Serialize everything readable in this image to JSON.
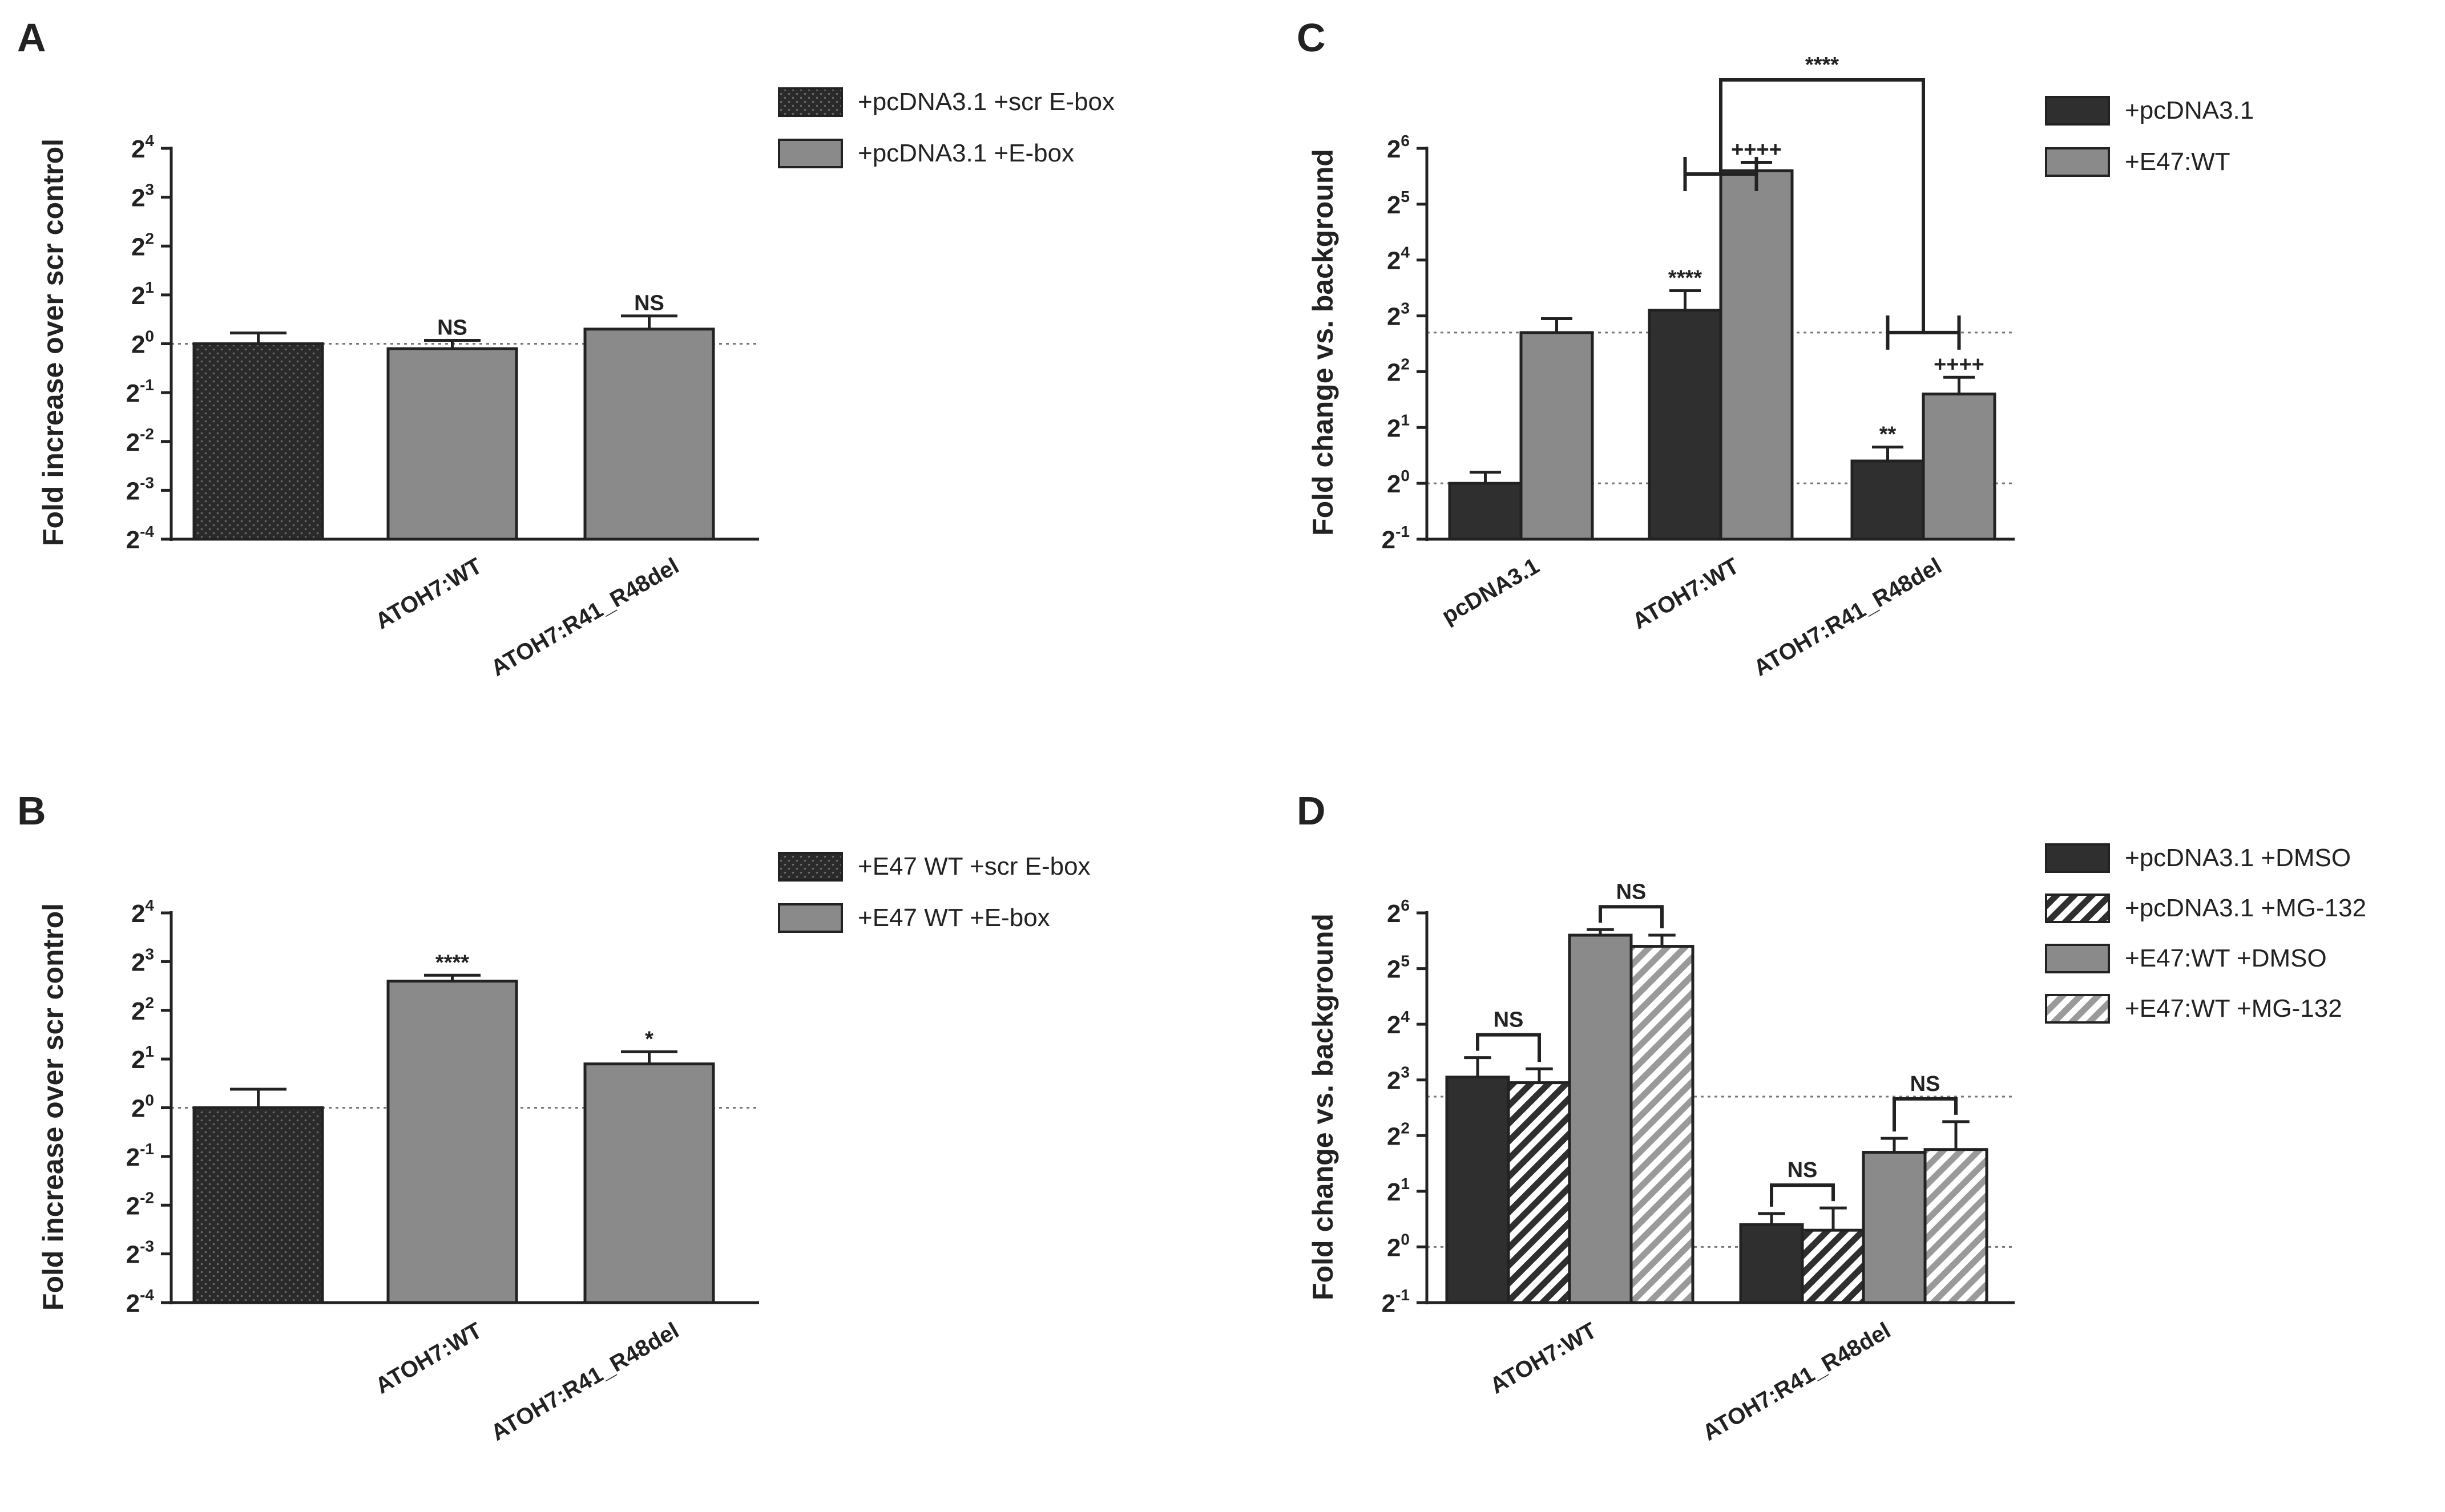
{
  "colors": {
    "dark": "#2f2f2f",
    "gray": "#8a8a8a",
    "edge": "#222222",
    "text": "#222222"
  },
  "chart_data": [
    {
      "id": "A",
      "type": "bar",
      "panel_label": "A",
      "title": "",
      "ylabel": "Fold increase over scr control",
      "yscale": "log2",
      "ylim_exp": [
        -4,
        4
      ],
      "ytick_exp": [
        -4,
        -3,
        -2,
        -1,
        0,
        1,
        2,
        3,
        4
      ],
      "ref_lines_exp": [
        0
      ],
      "categories": [
        "ATOH7:WT",
        "ATOH7:R41_R48del"
      ],
      "bars": [
        {
          "cat": 0,
          "series": 0,
          "exp": 0,
          "err_exp": 0.22,
          "label": ""
        },
        {
          "cat": 0,
          "series": 1,
          "exp": -0.1,
          "err_exp": 0.17,
          "label": "NS"
        },
        {
          "cat": 1,
          "series": 1,
          "exp": 0.3,
          "err_exp": 0.27,
          "label": "NS"
        }
      ],
      "series": [
        {
          "name": "+pcDNA3.1 +scr E-box",
          "pattern": "dots"
        },
        {
          "name": "+pcDNA3.1 +E-box",
          "pattern": "gray"
        }
      ],
      "legend": "top-right",
      "brackets": []
    },
    {
      "id": "B",
      "type": "bar",
      "panel_label": "B",
      "title": "",
      "ylabel": "Fold increase over scr control",
      "yscale": "log2",
      "ylim_exp": [
        -4,
        4
      ],
      "ytick_exp": [
        -4,
        -3,
        -2,
        -1,
        0,
        1,
        2,
        3,
        4
      ],
      "ref_lines_exp": [
        0
      ],
      "categories": [
        "ATOH7:WT",
        "ATOH7:R41_R48del"
      ],
      "bars": [
        {
          "cat": 0,
          "series": 0,
          "exp": 0,
          "err_exp": 0.38,
          "label": ""
        },
        {
          "cat": 0,
          "series": 1,
          "exp": 2.6,
          "err_exp": 0.12,
          "label": "****"
        },
        {
          "cat": 1,
          "series": 1,
          "exp": 0.9,
          "err_exp": 0.25,
          "label": "*"
        }
      ],
      "series": [
        {
          "name": "+E47 WT +scr E-box",
          "pattern": "dots"
        },
        {
          "name": "+E47 WT +E-box",
          "pattern": "gray"
        }
      ],
      "legend": "top-right",
      "brackets": []
    },
    {
      "id": "C",
      "type": "bar",
      "panel_label": "C",
      "title": "",
      "ylabel": "Fold change vs. background",
      "yscale": "log2",
      "ylim_exp": [
        -1,
        6
      ],
      "ytick_exp": [
        -1,
        0,
        1,
        2,
        3,
        4,
        5,
        6
      ],
      "ref_lines_exp": [
        0,
        2.7
      ],
      "categories": [
        "pcDNA3.1",
        "ATOH7:WT",
        "ATOH7:R41_R48del"
      ],
      "bars": [
        {
          "cat": 0,
          "series": 0,
          "exp": 0,
          "err_exp": 0.2,
          "label": ""
        },
        {
          "cat": 0,
          "series": 1,
          "exp": 2.7,
          "err_exp": 0.25,
          "label": ""
        },
        {
          "cat": 1,
          "series": 0,
          "exp": 3.1,
          "err_exp": 0.35,
          "label": "****"
        },
        {
          "cat": 1,
          "series": 1,
          "exp": 5.6,
          "err_exp": 0.15,
          "label": "++++"
        },
        {
          "cat": 2,
          "series": 0,
          "exp": 0.4,
          "err_exp": 0.25,
          "label": "**"
        },
        {
          "cat": 2,
          "series": 1,
          "exp": 1.6,
          "err_exp": 0.3,
          "label": "++++"
        }
      ],
      "series": [
        {
          "name": "+pcDNA3.1",
          "pattern": "dark"
        },
        {
          "name": "+E47:WT",
          "pattern": "gray"
        }
      ],
      "legend": "top-right",
      "brackets": [
        {
          "kind": "compare",
          "cat_a": 1,
          "cat_b": 2,
          "label": "****"
        }
      ]
    },
    {
      "id": "D",
      "type": "bar",
      "panel_label": "D",
      "title": "",
      "ylabel": "Fold change vs. background",
      "yscale": "log2",
      "ylim_exp": [
        -1,
        6
      ],
      "ytick_exp": [
        -1,
        0,
        1,
        2,
        3,
        4,
        5,
        6
      ],
      "ref_lines_exp": [
        0,
        2.7
      ],
      "categories": [
        "ATOH7:WT",
        "ATOH7:R41_R48del"
      ],
      "bars": [
        {
          "cat": 0,
          "series": 0,
          "exp": 3.05,
          "err_exp": 0.35,
          "label": ""
        },
        {
          "cat": 0,
          "series": 1,
          "exp": 2.95,
          "err_exp": 0.25,
          "label": ""
        },
        {
          "cat": 0,
          "series": 2,
          "exp": 5.6,
          "err_exp": 0.1,
          "label": ""
        },
        {
          "cat": 0,
          "series": 3,
          "exp": 5.4,
          "err_exp": 0.2,
          "label": ""
        },
        {
          "cat": 1,
          "series": 0,
          "exp": 0.4,
          "err_exp": 0.2,
          "label": ""
        },
        {
          "cat": 1,
          "series": 1,
          "exp": 0.3,
          "err_exp": 0.4,
          "label": ""
        },
        {
          "cat": 1,
          "series": 2,
          "exp": 1.7,
          "err_exp": 0.25,
          "label": ""
        },
        {
          "cat": 1,
          "series": 3,
          "exp": 1.75,
          "err_exp": 0.5,
          "label": ""
        }
      ],
      "series": [
        {
          "name": "+pcDNA3.1 +DMSO",
          "pattern": "dark"
        },
        {
          "name": "+pcDNA3.1 +MG-132",
          "pattern": "dark-hatch"
        },
        {
          "name": "+E47:WT +DMSO",
          "pattern": "gray"
        },
        {
          "name": "+E47:WT +MG-132",
          "pattern": "gray-hatch"
        }
      ],
      "legend": "top-right",
      "brackets": [
        {
          "kind": "pair",
          "cat": 0,
          "series_a": 0,
          "series_b": 1,
          "label": "NS"
        },
        {
          "kind": "pair",
          "cat": 0,
          "series_a": 2,
          "series_b": 3,
          "label": "NS"
        },
        {
          "kind": "pair",
          "cat": 1,
          "series_a": 0,
          "series_b": 1,
          "label": "NS"
        },
        {
          "kind": "pair",
          "cat": 1,
          "series_a": 2,
          "series_b": 3,
          "label": "NS"
        }
      ]
    }
  ]
}
